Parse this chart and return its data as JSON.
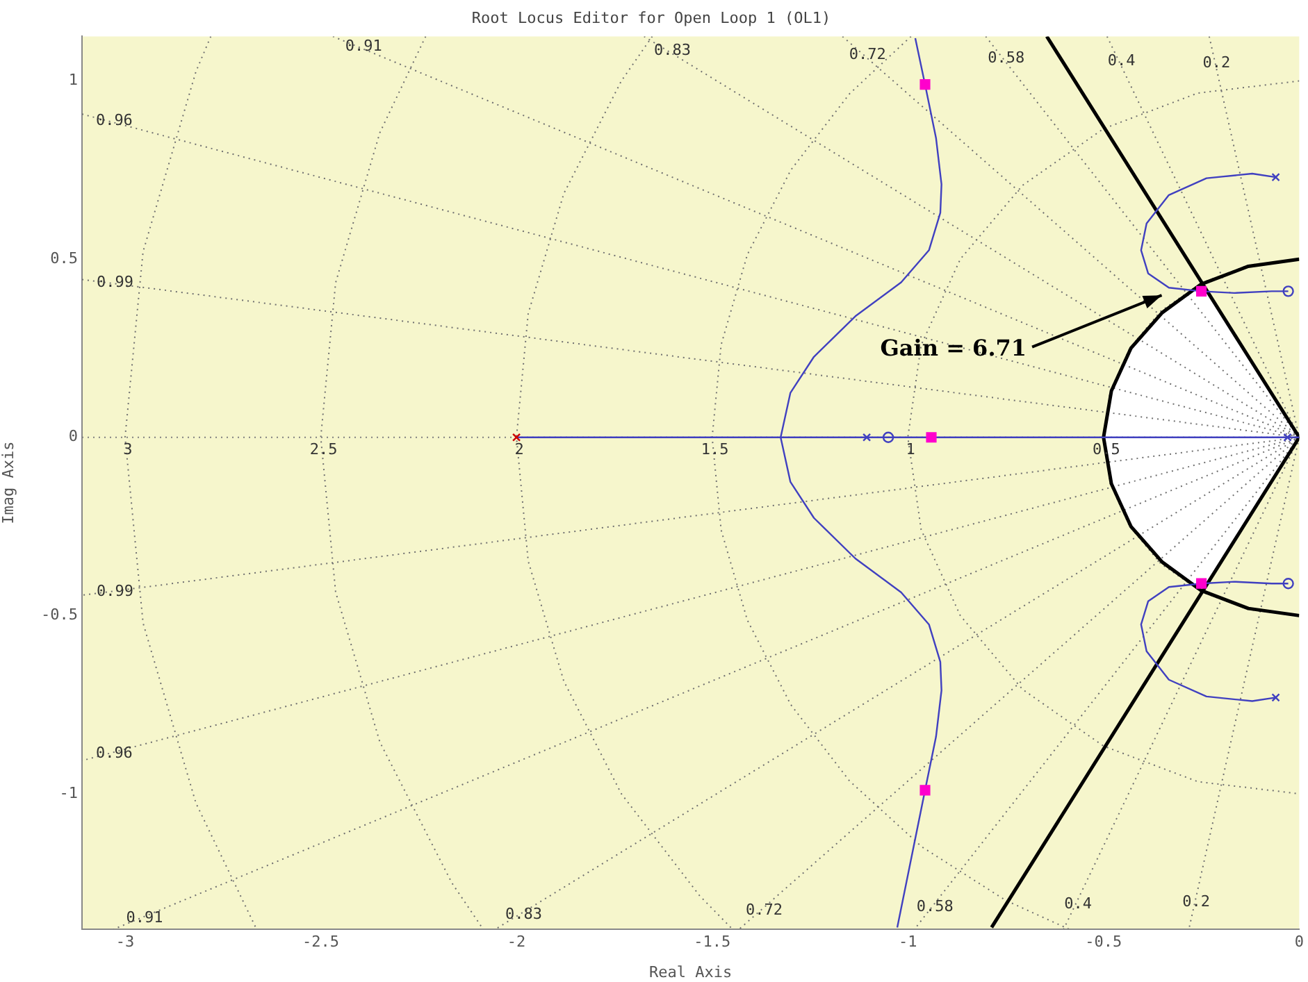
{
  "chart_data": {
    "type": "line",
    "title": "Root Locus Editor for Open Loop 1 (OL1)",
    "xlabel": "Real Axis",
    "ylabel": "Imag Axis",
    "xlim": [
      -3.11,
      0
    ],
    "ylim": [
      -1.38,
      1.125
    ],
    "xticks": [
      -3,
      -2.5,
      -2,
      -1.5,
      -1,
      -0.5,
      0
    ],
    "yticks": [
      -1,
      -0.5,
      0,
      0.5,
      1
    ],
    "legend": false,
    "ref_lines": [
      {
        "axis": "y",
        "value": 0,
        "color": "#808080",
        "line_style": "dotted"
      }
    ],
    "series": [
      {
        "type": "area",
        "color": "#ffffff",
        "x": [
          0,
          -0.25,
          -0.35,
          -0.43,
          -0.48,
          -0.5,
          -0.48,
          -0.43,
          -0.35,
          -0.25,
          0
        ],
        "values": [
          0,
          0.43,
          0.35,
          0.25,
          0.13,
          0,
          -0.13,
          -0.25,
          -0.35,
          -0.43,
          0
        ]
      },
      {
        "name": "0.99",
        "color": "#707070",
        "line_style": "dotted",
        "x": [
          -3.11,
          0,
          -3.11
        ],
        "values": [
          0.443,
          0,
          -0.443
        ]
      },
      {
        "name": "0.96",
        "color": "#707070",
        "line_style": "dotted",
        "x": [
          -3.11,
          0,
          -3.11
        ],
        "values": [
          0.907,
          0,
          -0.907
        ]
      },
      {
        "name": "0.91",
        "color": "#707070",
        "line_style": "dotted",
        "x": [
          -2.469,
          0,
          -3.029
        ],
        "values": [
          1.125,
          0,
          -1.38
        ]
      },
      {
        "name": "0.83",
        "color": "#707070",
        "line_style": "dotted",
        "x": [
          -1.674,
          0,
          -2.054
        ],
        "values": [
          1.125,
          0,
          -1.38
        ]
      },
      {
        "name": "0.72",
        "color": "#707070",
        "line_style": "dotted",
        "x": [
          -1.167,
          0,
          -1.431
        ],
        "values": [
          1.125,
          0,
          -1.38
        ]
      },
      {
        "name": "0.58",
        "color": "#707070",
        "line_style": "dotted",
        "x": [
          -0.801,
          0,
          -0.983
        ],
        "values": [
          1.125,
          0,
          -1.38
        ]
      },
      {
        "name": "0.4",
        "color": "#707070",
        "line_style": "dotted",
        "x": [
          -0.491,
          0,
          -0.602
        ],
        "values": [
          1.125,
          0,
          -1.38
        ]
      },
      {
        "name": "0.2",
        "color": "#707070",
        "line_style": "dotted",
        "x": [
          -0.23,
          0,
          -0.282
        ],
        "values": [
          1.125,
          0,
          -1.38
        ]
      },
      {
        "name": "3",
        "color": "#707070",
        "line_style": "dotted",
        "x": [
          -2.781,
          -2.819,
          -2.954,
          -3,
          -2.954,
          -2.819,
          -2.664
        ],
        "values": [
          1.125,
          1.026,
          0.521,
          0,
          -0.521,
          -1.026,
          -1.38
        ]
      },
      {
        "name": "2.5",
        "color": "#707070",
        "line_style": "dotted",
        "x": [
          -2.232,
          -2.349,
          -2.462,
          -2.5,
          -2.462,
          -2.349,
          -2.165,
          -2.085
        ],
        "values": [
          1.125,
          0.855,
          0.434,
          0,
          -0.434,
          -0.855,
          -1.25,
          -1.38
        ]
      },
      {
        "name": "2",
        "color": "#707070",
        "line_style": "dotted",
        "x": [
          -1.653,
          -1.732,
          -1.879,
          -1.97,
          -2,
          -1.97,
          -1.879,
          -1.732,
          -1.532,
          -1.448
        ],
        "values": [
          1.125,
          1,
          0.684,
          0.347,
          0,
          -0.347,
          -0.684,
          -1,
          -1.286,
          -1.38
        ]
      },
      {
        "name": "1.5",
        "color": "#707070",
        "line_style": "dotted",
        "x": [
          -0.992,
          -1.149,
          -1.299,
          -1.41,
          -1.477,
          -1.5,
          -1.477,
          -1.41,
          -1.299,
          -1.149,
          -0.964,
          -0.75,
          -0.588
        ],
        "values": [
          1.125,
          0.964,
          0.75,
          0.513,
          0.26,
          0,
          -0.26,
          -0.513,
          -0.75,
          -0.964,
          -1.149,
          -1.299,
          -1.38
        ]
      },
      {
        "name": "1",
        "color": "#707070",
        "line_style": "dotted",
        "x": [
          0,
          -0.259,
          -0.5,
          -0.707,
          -0.866,
          -0.966,
          -1,
          -0.966,
          -0.866,
          -0.707,
          -0.5,
          -0.259,
          0
        ],
        "values": [
          1,
          0.966,
          0.866,
          0.707,
          0.5,
          0.259,
          0,
          -0.259,
          -0.5,
          -0.707,
          -0.866,
          -0.966,
          -1
        ]
      },
      {
        "name": "0.5",
        "color": "#707070",
        "line_style": "dotted",
        "x": [
          0,
          -0.129,
          -0.25,
          -0.354,
          -0.433,
          -0.483,
          -0.5,
          -0.483,
          -0.433,
          -0.354,
          -0.25,
          -0.129,
          0
        ],
        "values": [
          0.5,
          0.483,
          0.433,
          0.354,
          0.25,
          0.129,
          0,
          -0.129,
          -0.25,
          -0.354,
          -0.433,
          -0.483,
          -0.5
        ]
      },
      {
        "color": "#4040c0",
        "x": [
          -2,
          0
        ],
        "values": [
          0,
          0
        ]
      },
      {
        "color": "#4040c0",
        "x": [
          -0.981,
          -0.956,
          -0.928,
          -0.914,
          -0.917,
          -0.946,
          -1.017,
          -1.134,
          -1.24,
          -1.3,
          -1.325,
          -1.3,
          -1.24,
          -1.134,
          -1.017,
          -0.946,
          -0.917,
          -0.914,
          -0.928,
          -0.956,
          -1.027
        ],
        "values": [
          1.12,
          0.99,
          0.84,
          0.71,
          0.63,
          0.525,
          0.435,
          0.34,
          0.226,
          0.125,
          0,
          -0.125,
          -0.226,
          -0.34,
          -0.435,
          -0.525,
          -0.63,
          -0.71,
          -0.84,
          -0.99,
          -1.375
        ]
      },
      {
        "color": "#4040c0",
        "x": [
          -0.06,
          -0.12,
          -0.237,
          -0.333,
          -0.39,
          -0.404,
          -0.386,
          -0.333,
          -0.25,
          -0.166,
          -0.07,
          -0.028
        ],
        "values": [
          0.73,
          0.74,
          0.727,
          0.68,
          0.6,
          0.525,
          0.46,
          0.42,
          0.41,
          0.405,
          0.41,
          0.41
        ]
      },
      {
        "color": "#4040c0",
        "x": [
          -0.06,
          -0.12,
          -0.237,
          -0.333,
          -0.39,
          -0.404,
          -0.386,
          -0.333,
          -0.25,
          -0.166,
          -0.07,
          -0.028
        ],
        "values": [
          -0.73,
          -0.74,
          -0.727,
          -0.68,
          -0.6,
          -0.525,
          -0.46,
          -0.42,
          -0.41,
          -0.405,
          -0.41,
          -0.41
        ]
      },
      {
        "color": "#000000",
        "x": [
          -0.645,
          0,
          -0.786
        ],
        "values": [
          1.125,
          0,
          -1.375
        ]
      },
      {
        "color": "#000000",
        "x": [
          0,
          -0.13,
          -0.25,
          -0.35,
          -0.43,
          -0.48,
          -0.5,
          -0.48,
          -0.43,
          -0.35,
          -0.25,
          -0.13,
          0
        ],
        "values": [
          0.5,
          0.48,
          0.43,
          0.35,
          0.25,
          0.13,
          0,
          -0.13,
          -0.25,
          -0.35,
          -0.43,
          -0.48,
          -0.5
        ]
      },
      {
        "type": "scatter",
        "color": "#4040c0",
        "marker": "cross",
        "x": [
          -1.105,
          -0.06,
          -0.06,
          -0.03
        ],
        "values": [
          0,
          0.73,
          -0.73,
          0
        ]
      },
      {
        "type": "scatter",
        "color": "#cc0000",
        "marker": "cross",
        "x": [
          -2
        ],
        "values": [
          0
        ]
      },
      {
        "type": "scatter",
        "color": "#4040c0",
        "marker": "circle",
        "x": [
          -1.05,
          -0.028,
          -0.028
        ],
        "values": [
          0,
          0.41,
          -0.41
        ]
      },
      {
        "type": "scatter",
        "color": "#ff00cc",
        "marker": "square",
        "x": [
          -0.956,
          -0.956,
          -0.94,
          -0.25,
          -0.25
        ],
        "values": [
          0.99,
          -0.99,
          0,
          0.41,
          -0.41
        ]
      }
    ],
    "annotations": [
      "Gain = 6.71"
    ]
  }
}
